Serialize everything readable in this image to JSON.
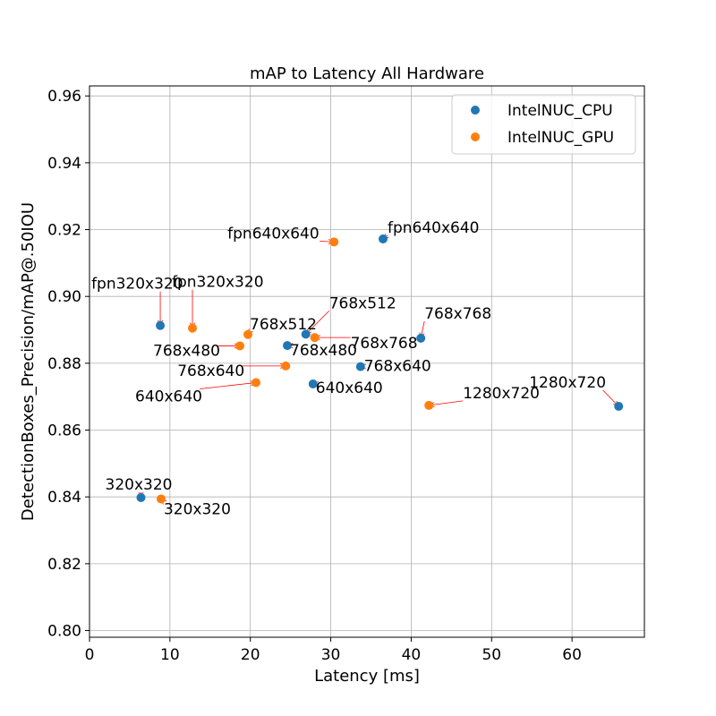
{
  "chart_data": {
    "type": "scatter",
    "title": "mAP to Latency All Hardware",
    "xlabel": "Latency [ms]",
    "ylabel": "DetectionBoxes_Precision/mAP@.50IOU",
    "xlim": [
      0,
      69
    ],
    "ylim": [
      0.798,
      0.963
    ],
    "xticks": [
      0,
      10,
      20,
      30,
      40,
      50,
      60
    ],
    "yticks": [
      0.8,
      0.82,
      0.84,
      0.86,
      0.88,
      0.9,
      0.92,
      0.94,
      0.96
    ],
    "grid": true,
    "legend_position": "top-right",
    "series": [
      {
        "name": "IntelNUC_CPU",
        "color": "#1f77b4",
        "points": [
          {
            "x": 8.8,
            "y": 0.8913,
            "label": "fpn320x320",
            "arrow": true
          },
          {
            "x": 36.5,
            "y": 0.9172,
            "label": "fpn640x640",
            "arrow": true
          },
          {
            "x": 6.4,
            "y": 0.8398,
            "label": "320x320",
            "arrow": true
          },
          {
            "x": 26.9,
            "y": 0.8887,
            "label": "768x512",
            "arrow": true
          },
          {
            "x": 24.6,
            "y": 0.8853,
            "label": "768x480",
            "arrow": true
          },
          {
            "x": 33.7,
            "y": 0.879,
            "label": "768x640",
            "arrow": true
          },
          {
            "x": 41.2,
            "y": 0.8875,
            "label": "768x768",
            "arrow": true
          },
          {
            "x": 27.8,
            "y": 0.8738,
            "label": "640x640",
            "arrow": true
          },
          {
            "x": 65.8,
            "y": 0.8671,
            "label": "1280x720",
            "arrow": true
          }
        ]
      },
      {
        "name": "IntelNUC_GPU",
        "color": "#ff7f0e",
        "points": [
          {
            "x": 12.8,
            "y": 0.8905,
            "label": "fpn320x320",
            "arrow": true
          },
          {
            "x": 30.4,
            "y": 0.9163,
            "label": "fpn640x640",
            "arrow": true
          },
          {
            "x": 8.9,
            "y": 0.8394,
            "label": "320x320",
            "arrow": true
          },
          {
            "x": 19.7,
            "y": 0.8886,
            "label": "768x512",
            "arrow": true
          },
          {
            "x": 18.7,
            "y": 0.8852,
            "label": "768x480",
            "arrow": true
          },
          {
            "x": 24.4,
            "y": 0.8792,
            "label": "768x640",
            "arrow": true
          },
          {
            "x": 28.0,
            "y": 0.8877,
            "label": "768x768",
            "arrow": true
          },
          {
            "x": 20.7,
            "y": 0.8742,
            "label": "640x640",
            "arrow": true
          },
          {
            "x": 42.2,
            "y": 0.8674,
            "label": "1280x720",
            "arrow": true
          }
        ]
      }
    ]
  }
}
